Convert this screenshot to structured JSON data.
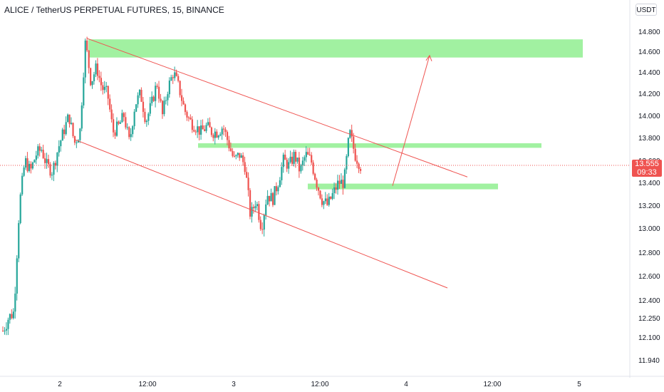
{
  "header": {
    "title": "ALICE / TetherUS PERPETUAL FUTURES, 15, BINANCE",
    "currency": "USDT"
  },
  "last_price": {
    "value": "13.555",
    "countdown": "09:33",
    "color": "#ef5350"
  },
  "colors": {
    "up": "#26a69a",
    "down": "#ef5350",
    "zone": "#90ee90",
    "line": "#ef5350"
  },
  "chart_data": {
    "type": "candlestick",
    "y_ticks": [
      "14.800",
      "14.600",
      "14.400",
      "14.200",
      "14.000",
      "13.800",
      "13.600",
      "13.400",
      "13.200",
      "13.000",
      "12.800",
      "12.600",
      "12.400",
      "12.250",
      "12.100",
      "11.940"
    ],
    "x_ticks": [
      "2",
      "12:00",
      "3",
      "12:00",
      "4",
      "12:00",
      "5"
    ],
    "current_price": 13.555,
    "price_path": [
      12.15,
      12.25,
      12.3,
      13.2,
      13.6,
      13.5,
      13.65,
      13.7,
      13.55,
      13.5,
      13.7,
      13.85,
      14.0,
      13.75,
      13.85,
      14.7,
      14.3,
      14.45,
      14.25,
      14.2,
      13.85,
      13.9,
      14.0,
      13.75,
      14.1,
      14.2,
      13.95,
      14.1,
      14.3,
      14.0,
      14.25,
      14.4,
      14.25,
      14.05,
      13.95,
      13.9,
      13.85,
      13.9,
      13.85,
      13.85,
      13.9,
      13.75,
      13.6,
      13.65,
      13.55,
      13.1,
      13.25,
      13.0,
      13.3,
      13.25,
      13.4,
      13.6,
      13.55,
      13.65,
      13.5,
      13.65,
      13.6,
      13.4,
      13.25,
      13.2,
      13.3,
      13.4,
      13.4,
      13.85,
      13.65,
      13.55
    ],
    "zones": [
      {
        "price_top": 14.72,
        "price_bottom": 14.54
      },
      {
        "price_top": 13.75,
        "price_bottom": 13.71
      },
      {
        "price_top": 13.39,
        "price_bottom": 13.34
      }
    ],
    "trendlines": [
      {
        "from": [
          14.73
        ],
        "to": [
          13.45
        ]
      },
      {
        "from": [
          13.78
        ],
        "to": [
          12.5
        ]
      }
    ],
    "arrow": {
      "from": 13.37,
      "to": 14.56
    }
  }
}
